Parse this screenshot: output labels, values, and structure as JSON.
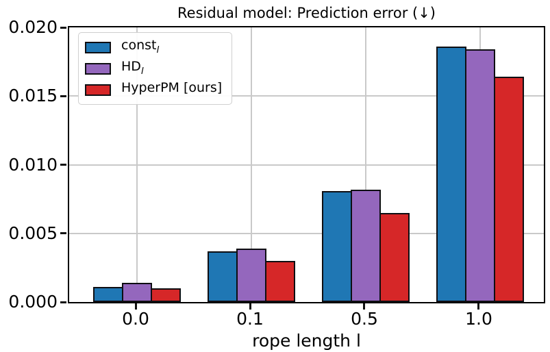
{
  "figure": {
    "title": "Residual model: Prediction error (↓)",
    "background": "#ffffff"
  },
  "chart_data": {
    "type": "bar",
    "title": "Residual model: Prediction error (↓)",
    "xlabel": "rope length l",
    "ylabel": "",
    "categories": [
      "0.0",
      "0.1",
      "0.5",
      "1.0"
    ],
    "series": [
      {
        "name": "const_l",
        "label_main": "const",
        "label_sub": "l",
        "color": "#1f77b4",
        "values": [
          0.0011,
          0.0037,
          0.0081,
          0.0186
        ]
      },
      {
        "name": "HD_l",
        "label_main": "HD",
        "label_sub": "l",
        "color": "#9467bd",
        "values": [
          0.0014,
          0.0039,
          0.0082,
          0.0184
        ]
      },
      {
        "name": "HyperPM_ours",
        "label_main": "HyperPM [ours]",
        "label_sub": "",
        "color": "#d62728",
        "values": [
          0.001,
          0.003,
          0.0065,
          0.0164
        ]
      }
    ],
    "ylim": [
      0.0,
      0.02
    ],
    "yticks": [
      "0.000",
      "0.005",
      "0.010",
      "0.015",
      "0.020"
    ],
    "grid": true,
    "grid_color": "#c9c9c9",
    "bar_edge_color": "#000000",
    "legend_position": "upper left",
    "legend_arrow_meaning": "lower is better"
  }
}
